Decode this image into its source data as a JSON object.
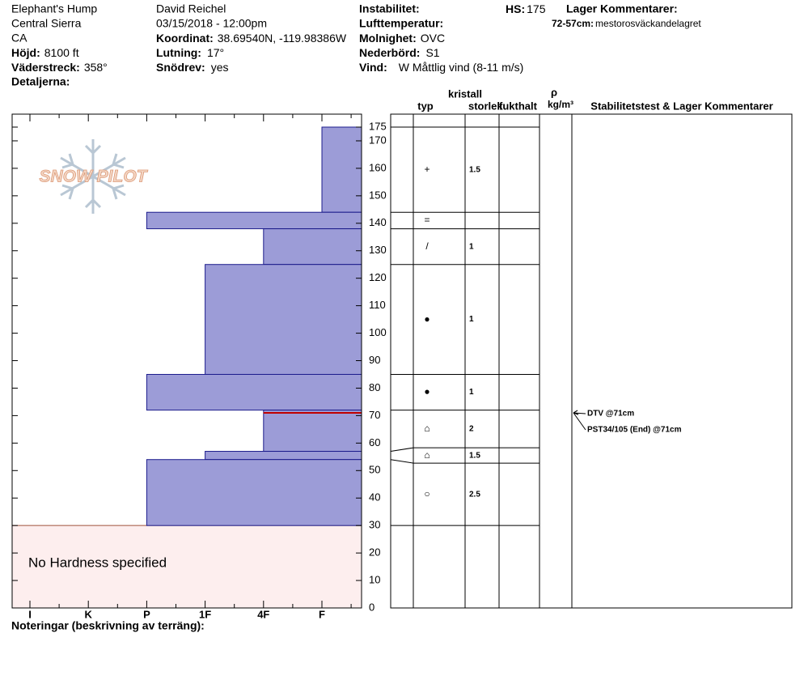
{
  "header": {
    "location": [
      "Elephant's Hump",
      "Central Sierra",
      "CA"
    ],
    "elevation": {
      "label": "Höjd:",
      "value": "8100 ft"
    },
    "aspect": {
      "label": "Väderstreck:",
      "value": "358°"
    },
    "details": {
      "label": "Detaljerna:"
    },
    "observer": "David Reichel",
    "datetime": "03/15/2018 - 12:00pm",
    "coordinates": {
      "label": "Koordinat:",
      "value": "38.69540N, -119.98386W"
    },
    "slope": {
      "label": "Lutning:",
      "value": "17°"
    },
    "wind_loading": {
      "label": "Snödrev:",
      "value": "yes"
    },
    "instability": {
      "label": "Instabilitet:"
    },
    "air_temp": {
      "label": "Lufttemperatur:"
    },
    "sky": {
      "label": "Molnighet:",
      "value": "OVC"
    },
    "precip": {
      "label": "Nederbörd:",
      "value": "S1"
    },
    "wind": {
      "label": "Vind:",
      "value": "W Måttlig vind (8-11 m/s)"
    },
    "hs": {
      "label": "HS:",
      "value": 175
    },
    "layer_comments": {
      "title": "Lager Kommentarer:",
      "items": [
        {
          "range": "72-57cm:",
          "text": "mestorosväckandelagret"
        }
      ]
    }
  },
  "columns": {
    "crystal": "kristall",
    "type": "typ",
    "size": "storlek",
    "moisture": "fukthalt",
    "rho": "ρ",
    "density_unit": "kg/m³",
    "tests": "Stabilitetstest & Lager Kommentarer"
  },
  "profile": {
    "hardness_scale": [
      "I",
      "K",
      "P",
      "1F",
      "4F",
      "F"
    ],
    "depth_lim": [
      0,
      175
    ],
    "depth_ticks": [
      0,
      10,
      20,
      30,
      40,
      50,
      60,
      70,
      80,
      90,
      100,
      110,
      120,
      130,
      140,
      150,
      160,
      170,
      175
    ],
    "layers": [
      {
        "top": 175,
        "bottom": 144,
        "hardness": "F",
        "grain": "+",
        "size": 1.5
      },
      {
        "top": 144,
        "bottom": 138,
        "hardness": "P",
        "grain": "="
      },
      {
        "top": 138,
        "bottom": 125,
        "hardness": "4F",
        "grain": "/",
        "size": 1
      },
      {
        "top": 125,
        "bottom": 85,
        "hardness": "1F",
        "grain": "●",
        "size": 1
      },
      {
        "top": 85,
        "bottom": 72,
        "hardness": "P",
        "grain": "●",
        "size": 1
      },
      {
        "top": 72,
        "bottom": 57,
        "hardness": "4F",
        "grain": "⌂",
        "size": 2
      },
      {
        "top": 57,
        "bottom": 54,
        "hardness": "1F",
        "grain": "⌂",
        "size": 1.5
      },
      {
        "top": 54,
        "bottom": 30,
        "hardness": "P",
        "grain": "○",
        "size": 2.5
      }
    ],
    "no_hardness_text": "No Hardness specified",
    "tests": [
      {
        "depth": 71,
        "label": "DTV @71cm"
      },
      {
        "depth": 71,
        "label": "PST34/105 (End) @71cm"
      }
    ]
  },
  "logo": "SNOW PILOT",
  "notes_label": "Noteringar (beskrivning av terräng):"
}
